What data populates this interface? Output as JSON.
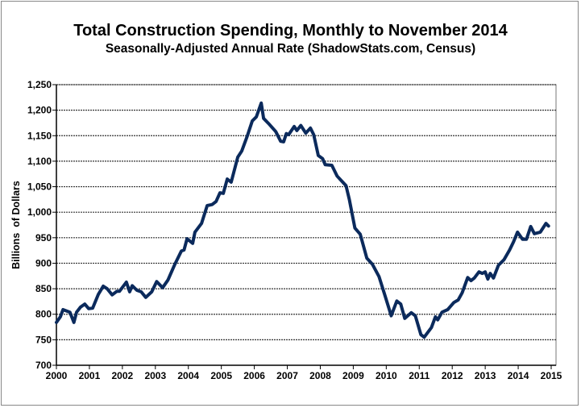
{
  "chart_data": {
    "type": "line",
    "title": "Total Construction Spending, Monthly to November 2014",
    "subtitle": "Seasonally-Adjusted Annual Rate (ShadowStats.com, Census)",
    "xlabel": "",
    "ylabel": "Billions  of Dollars",
    "xlim": [
      2000,
      2015
    ],
    "ylim": [
      700,
      1250
    ],
    "grid": true,
    "x_ticks": [
      "2000",
      "2001",
      "2002",
      "2003",
      "2004",
      "2005",
      "2006",
      "2007",
      "2008",
      "2009",
      "2010",
      "2011",
      "2012",
      "2013",
      "2014",
      "2015"
    ],
    "y_ticks": [
      "700",
      "750",
      "800",
      "850",
      "900",
      "950",
      "1,000",
      "1,050",
      "1,100",
      "1,150",
      "1,200",
      "1,250"
    ],
    "line_color": "#0b2a5c",
    "series": [
      {
        "name": "Total Construction Spending",
        "x": [
          2000.0,
          2000.12,
          2000.2,
          2000.41,
          2000.53,
          2000.61,
          2000.73,
          2000.86,
          2000.98,
          2001.1,
          2001.27,
          2001.42,
          2001.54,
          2001.69,
          2001.83,
          2001.91,
          2002.12,
          2002.22,
          2002.3,
          2002.44,
          2002.57,
          2002.71,
          2002.89,
          2003.04,
          2003.22,
          2003.38,
          2003.59,
          2003.79,
          2003.87,
          2003.96,
          2004.13,
          2004.2,
          2004.4,
          2004.57,
          2004.72,
          2004.84,
          2004.96,
          2005.06,
          2005.18,
          2005.3,
          2005.5,
          2005.62,
          2005.79,
          2005.94,
          2006.06,
          2006.21,
          2006.28,
          2006.43,
          2006.65,
          2006.8,
          2006.89,
          2006.97,
          2007.04,
          2007.21,
          2007.29,
          2007.41,
          2007.56,
          2007.7,
          2007.8,
          2007.94,
          2008.07,
          2008.15,
          2008.35,
          2008.51,
          2008.68,
          2008.78,
          2008.88,
          2009.05,
          2009.21,
          2009.41,
          2009.58,
          2009.78,
          2009.95,
          2010.15,
          2010.32,
          2010.44,
          2010.56,
          2010.76,
          2010.88,
          2011.05,
          2011.15,
          2011.37,
          2011.49,
          2011.56,
          2011.69,
          2011.86,
          2012.05,
          2012.18,
          2012.3,
          2012.47,
          2012.57,
          2012.67,
          2012.81,
          2012.91,
          2013.0,
          2013.08,
          2013.15,
          2013.25,
          2013.4,
          2013.57,
          2013.74,
          2013.86,
          2013.98,
          2014.13,
          2014.25,
          2014.38,
          2014.49,
          2014.67,
          2014.84,
          2014.92
        ],
        "values": [
          784,
          795,
          809,
          804,
          784,
          804,
          814,
          820,
          811,
          812,
          839,
          855,
          850,
          838,
          845,
          845,
          863,
          844,
          856,
          847,
          844,
          833,
          844,
          864,
          852,
          867,
          898,
          924,
          926,
          948,
          939,
          961,
          978,
          1013,
          1015,
          1021,
          1038,
          1037,
          1065,
          1059,
          1108,
          1120,
          1150,
          1179,
          1187,
          1214,
          1184,
          1174,
          1158,
          1139,
          1138,
          1154,
          1152,
          1168,
          1160,
          1170,
          1155,
          1165,
          1152,
          1111,
          1105,
          1093,
          1092,
          1071,
          1059,
          1052,
          1025,
          969,
          957,
          910,
          898,
          874,
          839,
          797,
          826,
          820,
          792,
          803,
          797,
          760,
          755,
          774,
          795,
          789,
          804,
          809,
          823,
          828,
          842,
          872,
          866,
          871,
          883,
          880,
          883,
          869,
          880,
          871,
          896,
          907,
          926,
          942,
          961,
          947,
          947,
          972,
          958,
          961,
          978,
          973
        ]
      }
    ]
  }
}
